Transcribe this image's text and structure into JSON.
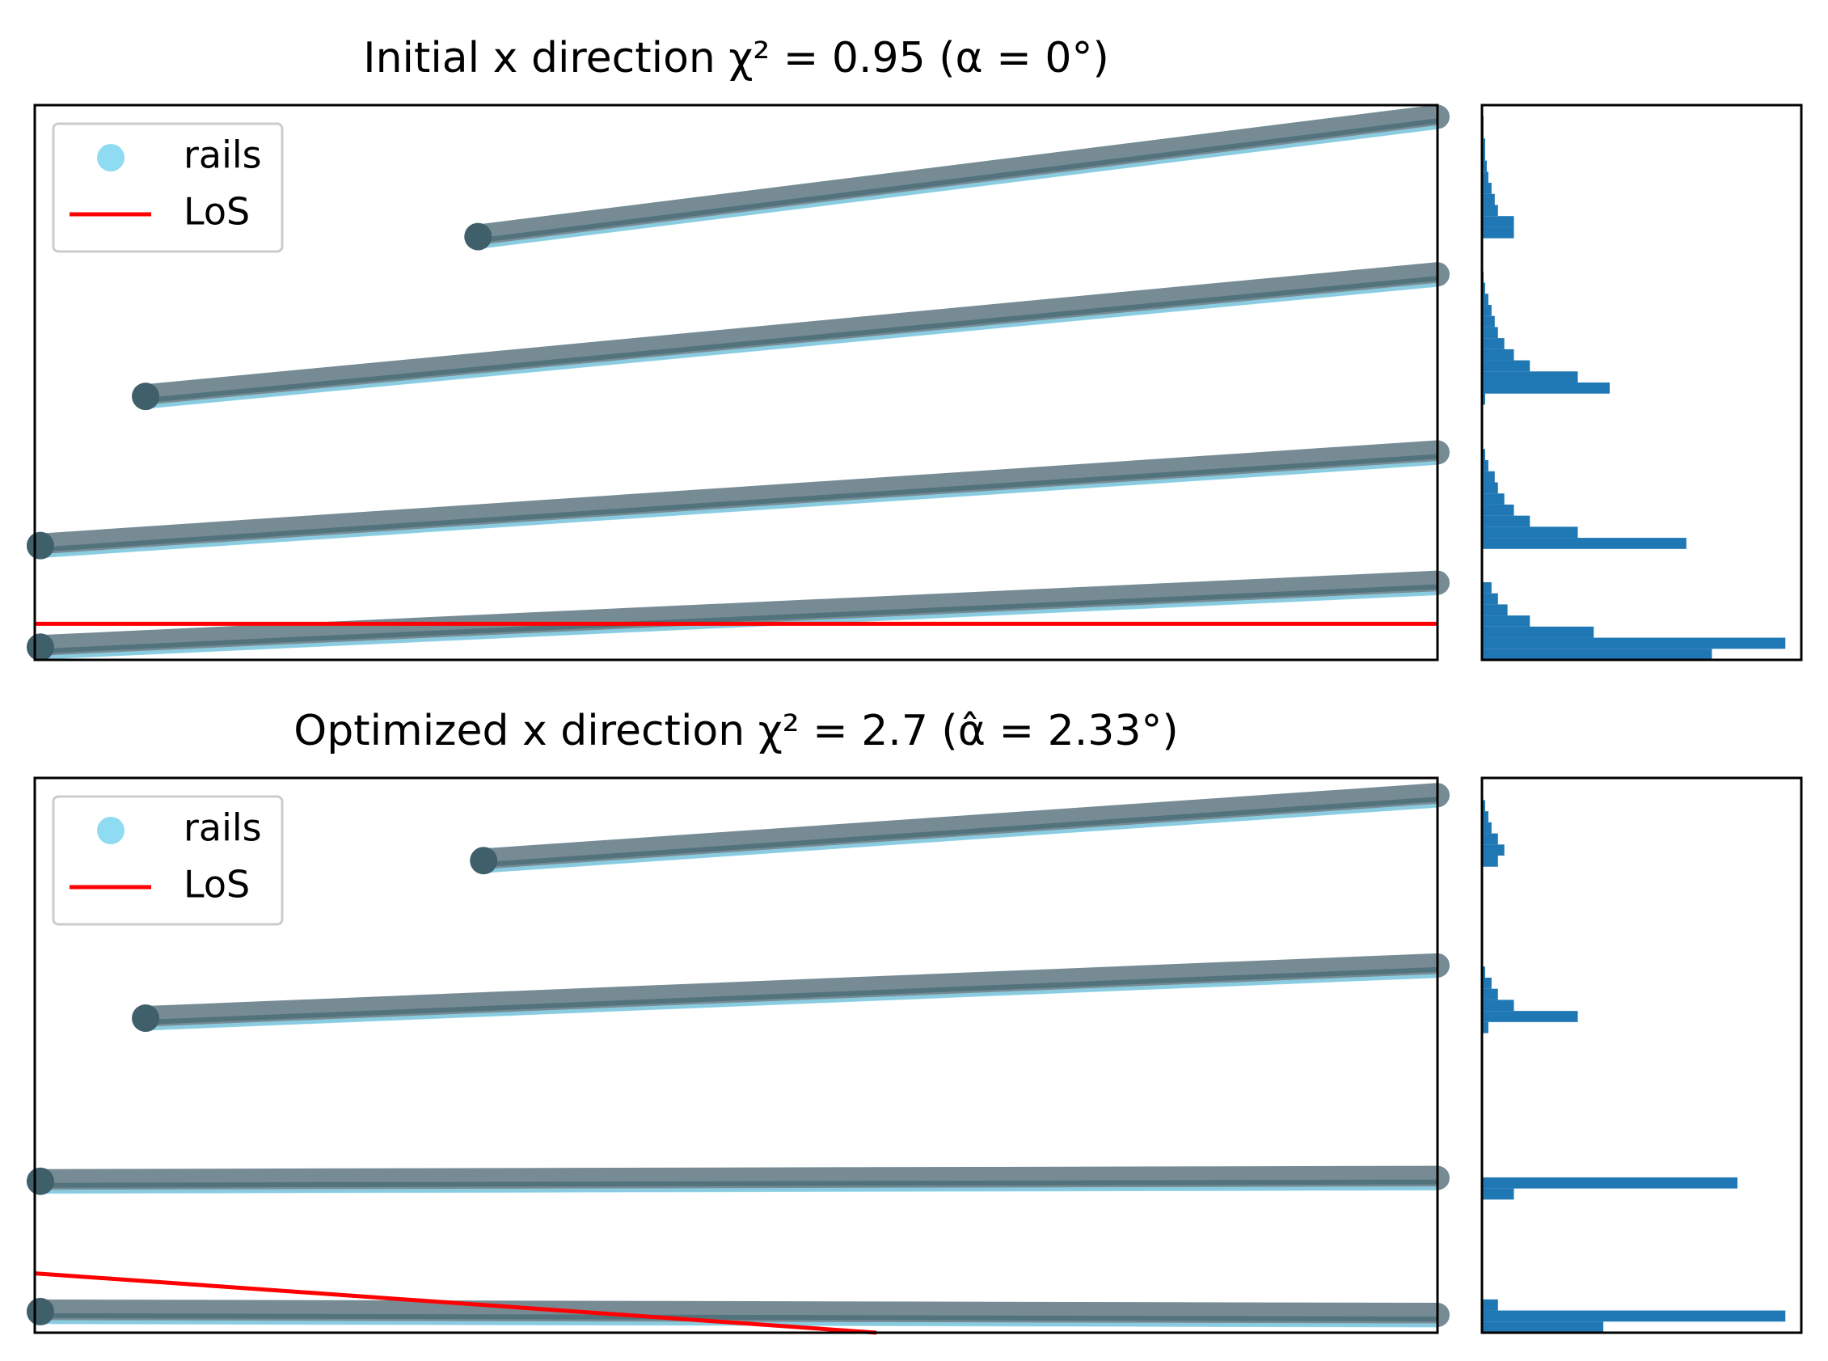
{
  "chart_data": [
    {
      "type": "scatter",
      "title": "Initial x direction χ² = 0.95  (α = 0°)",
      "xlim": [
        0,
        1
      ],
      "ylim": [
        0,
        1
      ],
      "legend": "upper left",
      "series": [
        {
          "name": "rails",
          "color": "#8fdcf2",
          "lines": [
            {
              "x": [
                0.316,
                1
              ],
              "y": [
                0.763,
                0.979
              ]
            },
            {
              "x": [
                0.079,
                1
              ],
              "y": [
                0.475,
                0.695
              ]
            },
            {
              "x": [
                0.004,
                1
              ],
              "y": [
                0.206,
                0.374
              ]
            },
            {
              "x": [
                0.004,
                1
              ],
              "y": [
                0.023,
                0.139
              ]
            }
          ]
        },
        {
          "name": "LoS",
          "color": "#ff0000",
          "x": [
            0,
            1
          ],
          "y": [
            0.065,
            0.065
          ]
        }
      ],
      "histogram": {
        "type": "histogram",
        "color": "#1f77b4",
        "xlim": [
          0,
          1
        ],
        "bins": [
          0,
          0.02,
          0.04,
          0.06,
          0.08,
          0.1,
          0.12,
          0.14,
          0.16,
          0.18,
          0.2,
          0.22,
          0.24,
          0.26,
          0.28,
          0.3,
          0.32,
          0.34,
          0.36,
          0.38,
          0.4,
          0.42,
          0.44,
          0.46,
          0.48,
          0.5,
          0.52,
          0.54,
          0.56,
          0.58,
          0.6,
          0.62,
          0.64,
          0.66,
          0.68,
          0.7,
          0.72,
          0.74,
          0.76,
          0.78,
          0.8,
          0.82,
          0.84,
          0.86,
          0.88,
          0.9,
          0.92,
          0.94,
          0.96,
          0.98,
          1
        ],
        "counts": [
          0.72,
          0.95,
          0.35,
          0.15,
          0.08,
          0.05,
          0.03,
          0,
          0,
          0,
          0.64,
          0.3,
          0.15,
          0.1,
          0.07,
          0.05,
          0.04,
          0.02,
          0.01,
          0,
          0,
          0,
          0,
          0.01,
          0.4,
          0.3,
          0.15,
          0.1,
          0.07,
          0.05,
          0.04,
          0.03,
          0.02,
          0.01,
          0.005,
          0,
          0,
          0,
          0.1,
          0.1,
          0.05,
          0.04,
          0.03,
          0.02,
          0.015,
          0.01,
          0.01,
          0.005,
          0.005,
          0
        ]
      }
    },
    {
      "type": "scatter",
      "title": "Optimized x direction χ² = 2.7  (α̂ = 2.33°)",
      "xlim": [
        0,
        1
      ],
      "ylim": [
        0,
        1
      ],
      "legend": "upper left",
      "series": [
        {
          "name": "rails",
          "color": "#8fdcf2",
          "lines": [
            {
              "x": [
                0.32,
                1
              ],
              "y": [
                0.851,
                0.969
              ]
            },
            {
              "x": [
                0.079,
                1
              ],
              "y": [
                0.567,
                0.662
              ]
            },
            {
              "x": [
                0.004,
                1
              ],
              "y": [
                0.273,
                0.279
              ]
            },
            {
              "x": [
                0.004,
                1
              ],
              "y": [
                0.038,
                0.032
              ]
            }
          ]
        },
        {
          "name": "LoS",
          "color": "#ff0000",
          "x": [
            0,
            0.6
          ],
          "y": [
            0.107,
            0
          ]
        }
      ],
      "histogram": {
        "type": "histogram",
        "color": "#1f77b4",
        "xlim": [
          0,
          1
        ],
        "bins": [
          0,
          0.02,
          0.04,
          0.06,
          0.08,
          0.1,
          0.12,
          0.14,
          0.16,
          0.18,
          0.2,
          0.22,
          0.24,
          0.26,
          0.28,
          0.3,
          0.32,
          0.34,
          0.36,
          0.38,
          0.4,
          0.42,
          0.44,
          0.46,
          0.48,
          0.5,
          0.52,
          0.54,
          0.56,
          0.58,
          0.6,
          0.62,
          0.64,
          0.66,
          0.68,
          0.7,
          0.72,
          0.74,
          0.76,
          0.78,
          0.8,
          0.82,
          0.84,
          0.86,
          0.88,
          0.9,
          0.92,
          0.94,
          0.96,
          0.98,
          1
        ],
        "counts": [
          0.38,
          0.95,
          0.05,
          0,
          0,
          0,
          0,
          0,
          0,
          0,
          0,
          0,
          0.1,
          0.8,
          0,
          0,
          0,
          0,
          0,
          0,
          0,
          0,
          0,
          0,
          0,
          0,
          0,
          0.02,
          0.3,
          0.1,
          0.05,
          0.03,
          0.01,
          0,
          0,
          0,
          0,
          0,
          0,
          0,
          0,
          0,
          0.05,
          0.07,
          0.05,
          0.03,
          0.02,
          0.01,
          0,
          0
        ]
      }
    }
  ]
}
